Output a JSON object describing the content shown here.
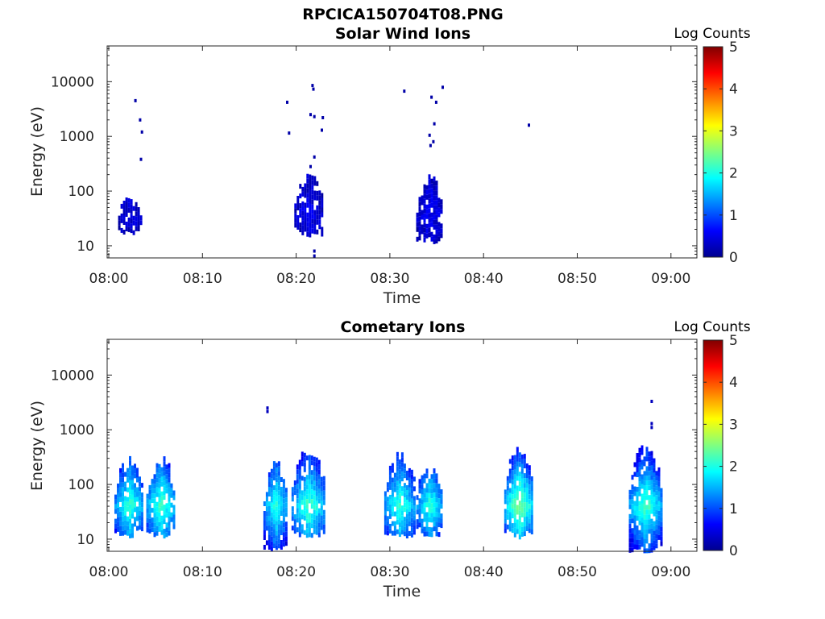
{
  "figure_title": "RPCICA150704T08.PNG",
  "chart_data": [
    {
      "type": "heatmap",
      "title": "Solar Wind Ions",
      "xlabel": "Time",
      "ylabel": "Energy (eV)",
      "y_scale": "log",
      "ylim": [
        6,
        45000
      ],
      "x_range_minutes": [
        0,
        63
      ],
      "x_ticks": [
        "08:00",
        "08:10",
        "08:20",
        "08:30",
        "08:40",
        "08:50",
        "09:00"
      ],
      "y_ticks": [
        "10",
        "100",
        "1000",
        "10000"
      ],
      "colorbar": {
        "label": "Log Counts",
        "range": [
          0,
          5
        ],
        "ticks": [
          "0",
          "1",
          "2",
          "3",
          "4",
          "5"
        ],
        "colormap": "jet"
      },
      "grid": false,
      "clusters": [
        {
          "t_start": 1.0,
          "t_end": 3.5,
          "e_low": 18,
          "e_high": 100,
          "peak_log_count": 0.5
        },
        {
          "t_start": 19.8,
          "t_end": 22.8,
          "e_low": 17,
          "e_high": 230,
          "peak_log_count": 0.6
        },
        {
          "t_start": 32.8,
          "t_end": 35.6,
          "e_low": 12,
          "e_high": 210,
          "peak_log_count": 0.6
        }
      ],
      "isolated_points": [
        {
          "t": 2.8,
          "e": 4500,
          "log_count": 0.2
        },
        {
          "t": 3.3,
          "e": 2000,
          "log_count": 0.2
        },
        {
          "t": 3.5,
          "e": 1200,
          "log_count": 0.2
        },
        {
          "t": 3.4,
          "e": 380,
          "log_count": 0.2
        },
        {
          "t": 19.0,
          "e": 4200,
          "log_count": 0.2
        },
        {
          "t": 19.2,
          "e": 1150,
          "log_count": 0.2
        },
        {
          "t": 21.7,
          "e": 8500,
          "log_count": 0.2
        },
        {
          "t": 21.8,
          "e": 7300,
          "log_count": 0.2
        },
        {
          "t": 21.5,
          "e": 2500,
          "log_count": 0.2
        },
        {
          "t": 21.9,
          "e": 2300,
          "log_count": 0.2
        },
        {
          "t": 22.8,
          "e": 2200,
          "log_count": 0.2
        },
        {
          "t": 22.7,
          "e": 1300,
          "log_count": 0.2
        },
        {
          "t": 21.9,
          "e": 420,
          "log_count": 0.2
        },
        {
          "t": 21.5,
          "e": 280,
          "log_count": 0.2
        },
        {
          "t": 21.9,
          "e": 8,
          "log_count": 0.2
        },
        {
          "t": 21.9,
          "e": 6.5,
          "log_count": 0.2
        },
        {
          "t": 31.5,
          "e": 6700,
          "log_count": 0.2
        },
        {
          "t": 35.6,
          "e": 7900,
          "log_count": 0.2
        },
        {
          "t": 34.4,
          "e": 5200,
          "log_count": 0.2
        },
        {
          "t": 34.9,
          "e": 4200,
          "log_count": 0.2
        },
        {
          "t": 34.7,
          "e": 1700,
          "log_count": 0.2
        },
        {
          "t": 34.2,
          "e": 1050,
          "log_count": 0.2
        },
        {
          "t": 34.6,
          "e": 800,
          "log_count": 0.2
        },
        {
          "t": 34.3,
          "e": 680,
          "log_count": 0.2
        },
        {
          "t": 44.8,
          "e": 1600,
          "log_count": 0.2
        }
      ]
    },
    {
      "type": "heatmap",
      "title": "Cometary Ions",
      "xlabel": "Time",
      "ylabel": "Energy (eV)",
      "y_scale": "log",
      "ylim": [
        6,
        45000
      ],
      "x_range_minutes": [
        0,
        63
      ],
      "x_ticks": [
        "08:00",
        "08:10",
        "08:20",
        "08:30",
        "08:40",
        "08:50",
        "09:00"
      ],
      "y_ticks": [
        "10",
        "100",
        "1000",
        "10000"
      ],
      "colorbar": {
        "label": "Log Counts",
        "range": [
          0,
          5
        ],
        "ticks": [
          "0",
          "1",
          "2",
          "3",
          "4",
          "5"
        ],
        "colormap": "jet"
      },
      "grid": false,
      "clusters": [
        {
          "t_start": 0.6,
          "t_end": 3.6,
          "e_low": 12,
          "e_high": 330,
          "peak_log_count": 2.2
        },
        {
          "t_start": 4.0,
          "t_end": 7.0,
          "e_low": 12,
          "e_high": 350,
          "peak_log_count": 2.3
        },
        {
          "t_start": 16.5,
          "t_end": 19.0,
          "e_low": 6.5,
          "e_high": 300,
          "peak_log_count": 2.1
        },
        {
          "t_start": 19.5,
          "t_end": 23.0,
          "e_low": 12,
          "e_high": 550,
          "peak_log_count": 2.3
        },
        {
          "t_start": 29.4,
          "t_end": 32.6,
          "e_low": 12,
          "e_high": 420,
          "peak_log_count": 2.2
        },
        {
          "t_start": 32.8,
          "t_end": 35.5,
          "e_low": 12,
          "e_high": 330,
          "peak_log_count": 2.1
        },
        {
          "t_start": 42.2,
          "t_end": 45.2,
          "e_low": 12,
          "e_high": 650,
          "peak_log_count": 2.6
        },
        {
          "t_start": 55.5,
          "t_end": 58.9,
          "e_low": 6.5,
          "e_high": 650,
          "peak_log_count": 2.3
        }
      ],
      "isolated_points": [
        {
          "t": 16.9,
          "e": 2500,
          "log_count": 0.3
        },
        {
          "t": 16.9,
          "e": 2150,
          "log_count": 0.3
        },
        {
          "t": 57.9,
          "e": 3300,
          "log_count": 0.3
        },
        {
          "t": 57.9,
          "e": 1100,
          "log_count": 0.3
        },
        {
          "t": 57.9,
          "e": 1300,
          "log_count": 0.3
        }
      ]
    }
  ]
}
